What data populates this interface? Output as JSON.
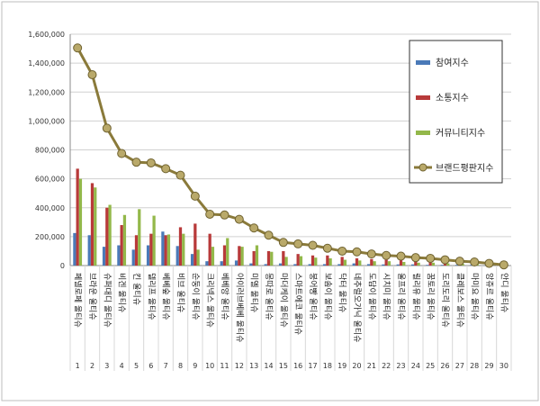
{
  "chart_data": {
    "type": "bar",
    "title": "",
    "xlabel": "",
    "ylabel": "",
    "ylim": [
      0,
      1600000
    ],
    "y_ticks": [
      "0",
      "200,000",
      "400,000",
      "600,000",
      "800,000",
      "1,000,000",
      "1,200,000",
      "1,400,000",
      "1,600,000"
    ],
    "grid": true,
    "legend_position": "right",
    "categories": [
      "페넬로페 울티슈",
      "브라운 울티슈",
      "슈퍼대디 울티슈",
      "비겐 울티슈",
      "킨 울티슈",
      "델리프 울티슈",
      "베베숲 울티슈",
      "비브 울티슈",
      "순둥이 울티슈",
      "크리넥스 울티슈",
      "베베앙 울티슈",
      "아이러브베베 울티슈",
      "미엘 울티슈",
      "몽따로 울티슈",
      "마더케이 울티슈",
      "스마트에코 울티슈",
      "붕어빵 울티슈",
      "보솜이 울티슈",
      "닥터 울티슈",
      "네추럴오가닉 울티슈",
      "도담이 울티슈",
      "시치미 울티슈",
      "울프리 울티슈",
      "릴리유 울티슈",
      "꿈토리 울티슈",
      "도리도리 울티슈",
      "클레보스 울티슈",
      "마미요 울티슈",
      "앙쥬르 울티슈",
      "안디 울티슈"
    ],
    "rank_labels": [
      "1",
      "2",
      "3",
      "4",
      "5",
      "6",
      "7",
      "8",
      "9",
      "10",
      "11",
      "12",
      "13",
      "14",
      "15",
      "16",
      "17",
      "18",
      "19",
      "20",
      "21",
      "22",
      "23",
      "24",
      "25",
      "26",
      "27",
      "28",
      "29",
      "30"
    ],
    "series": [
      {
        "name": "참여지수",
        "type": "bar",
        "color": "#4a7ab8",
        "values": [
          225000,
          210000,
          130000,
          140000,
          110000,
          140000,
          235000,
          135000,
          80000,
          30000,
          30000,
          35000,
          15000,
          10000,
          15000,
          10000,
          10000,
          10000,
          10000,
          15000,
          10000,
          8000,
          8000,
          8000,
          5000,
          5000,
          5000,
          5000,
          3000,
          3000
        ]
      },
      {
        "name": "소통지수",
        "type": "bar",
        "color": "#b83a3a",
        "values": [
          670000,
          570000,
          400000,
          280000,
          210000,
          220000,
          210000,
          265000,
          290000,
          220000,
          140000,
          135000,
          100000,
          100000,
          100000,
          80000,
          70000,
          70000,
          60000,
          50000,
          45000,
          40000,
          40000,
          35000,
          30000,
          25000,
          20000,
          15000,
          10000,
          5000
        ]
      },
      {
        "name": "커뮤니티지수",
        "type": "bar",
        "color": "#93b84a",
        "values": [
          600000,
          540000,
          420000,
          350000,
          390000,
          345000,
          215000,
          220000,
          110000,
          130000,
          190000,
          130000,
          140000,
          95000,
          60000,
          65000,
          55000,
          50000,
          40000,
          35000,
          30000,
          30000,
          25000,
          20000,
          20000,
          15000,
          12000,
          10000,
          8000,
          5000
        ]
      },
      {
        "name": "브랜드평판지수",
        "type": "line",
        "color": "#8a7a3a",
        "values": [
          1505000,
          1320000,
          950000,
          775000,
          715000,
          710000,
          670000,
          625000,
          480000,
          355000,
          350000,
          320000,
          260000,
          210000,
          160000,
          150000,
          140000,
          120000,
          100000,
          95000,
          80000,
          70000,
          65000,
          55000,
          50000,
          40000,
          30000,
          25000,
          15000,
          5000
        ]
      }
    ]
  }
}
